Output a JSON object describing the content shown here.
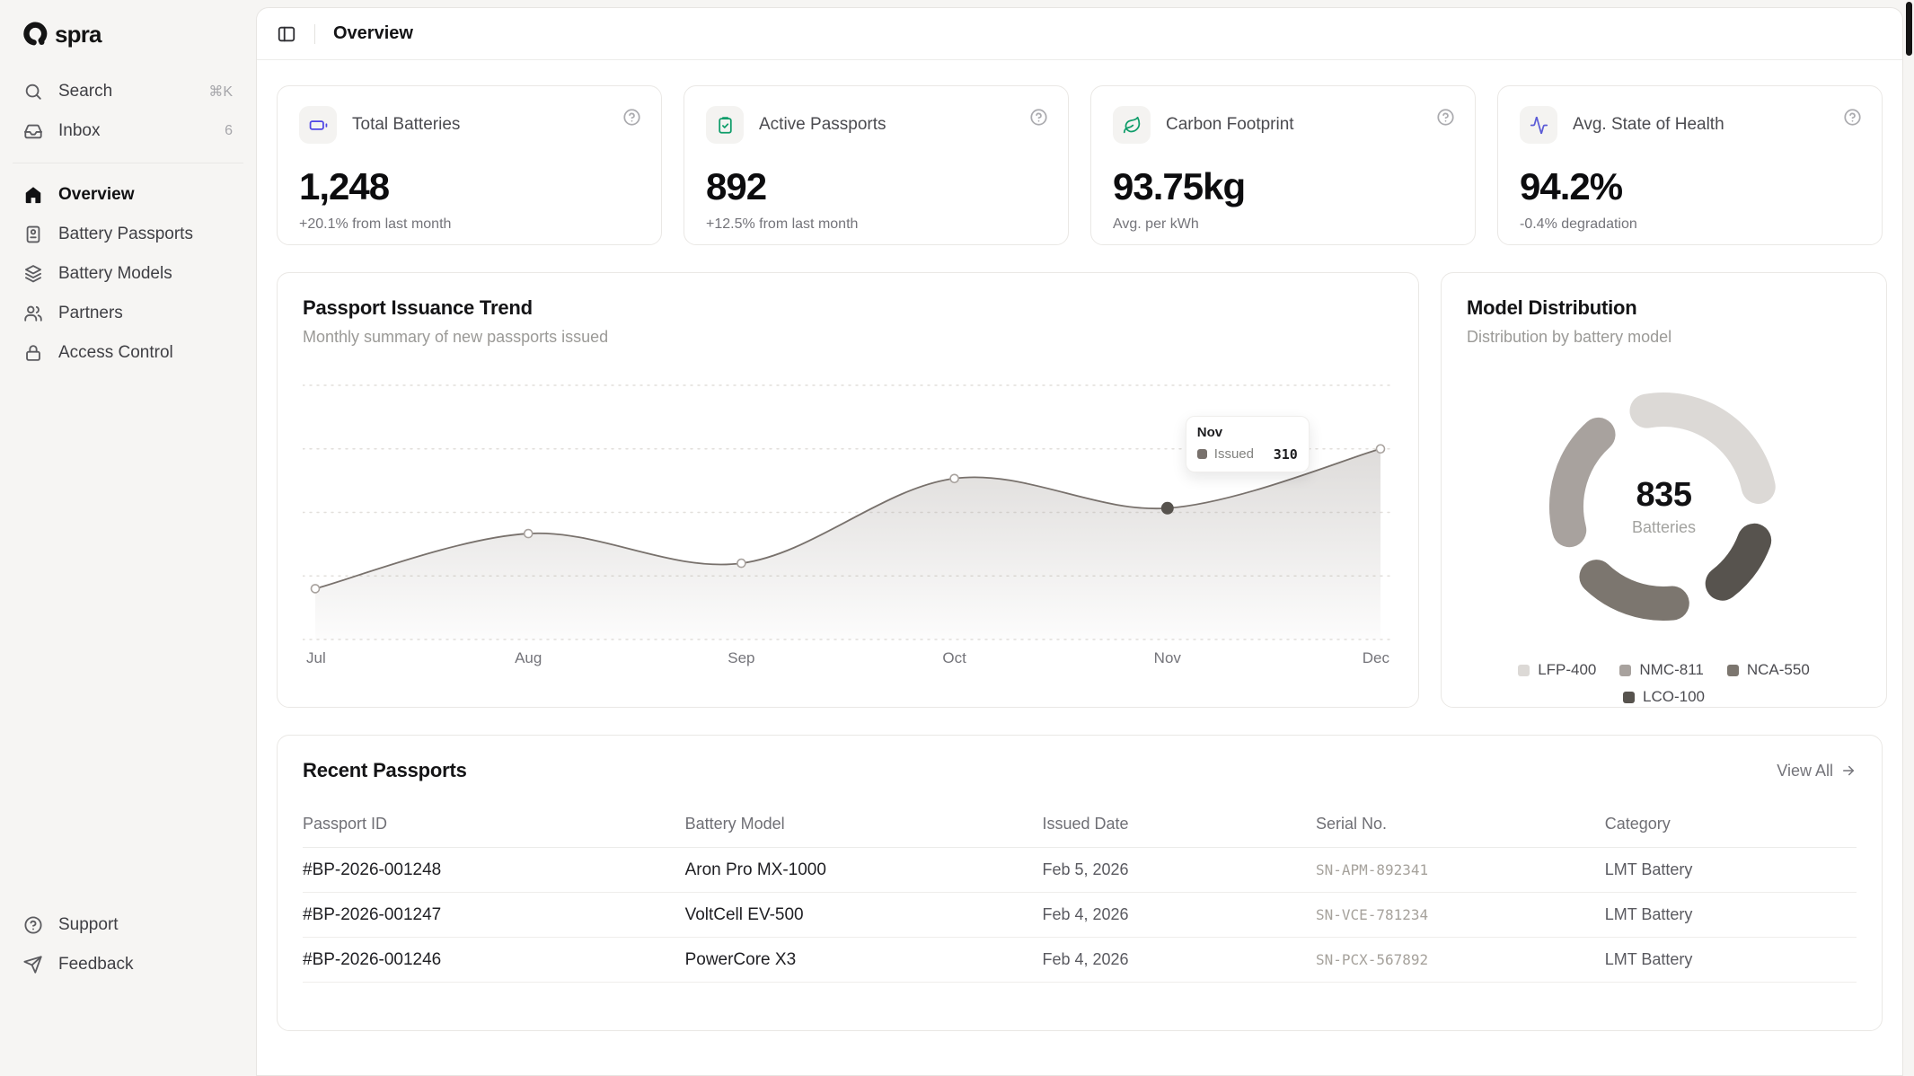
{
  "brand": {
    "name": "spra"
  },
  "sidebar": {
    "search": {
      "label": "Search",
      "shortcut": "⌘K"
    },
    "inbox": {
      "label": "Inbox",
      "badge": "6"
    },
    "nav": [
      {
        "label": "Overview",
        "icon": "home",
        "active": true
      },
      {
        "label": "Battery Passports",
        "icon": "passport",
        "active": false
      },
      {
        "label": "Battery Models",
        "icon": "layers",
        "active": false
      },
      {
        "label": "Partners",
        "icon": "users",
        "active": false
      },
      {
        "label": "Access Control",
        "icon": "lock",
        "active": false
      }
    ],
    "footer": [
      {
        "label": "Support",
        "icon": "help"
      },
      {
        "label": "Feedback",
        "icon": "send"
      }
    ]
  },
  "header": {
    "title": "Overview"
  },
  "stats": [
    {
      "title": "Total Batteries",
      "value": "1,248",
      "subtext": "+20.1% from last month",
      "icon": "battery",
      "icon_color": "#4f46e5"
    },
    {
      "title": "Active Passports",
      "value": "892",
      "subtext": "+12.5% from last month",
      "icon": "clipboard-check",
      "icon_color": "#0f9d6a"
    },
    {
      "title": "Carbon Footprint",
      "value": "93.75kg",
      "subtext": "Avg. per kWh",
      "icon": "leaf",
      "icon_color": "#0f9d6a"
    },
    {
      "title": "Avg. State of Health",
      "value": "94.2%",
      "subtext": "-0.4% degradation",
      "icon": "activity",
      "icon_color": "#5b5bd6"
    }
  ],
  "trend_card": {
    "title": "Passport Issuance Trend",
    "subtitle": "Monthly summary of new passports issued",
    "tooltip": {
      "month": "Nov",
      "series": "Issued",
      "value": "310"
    }
  },
  "distribution_card": {
    "title": "Model Distribution",
    "subtitle": "Distribution by battery model",
    "center_value": "835",
    "center_label": "Batteries"
  },
  "chart_data": [
    {
      "type": "area",
      "title": "Passport Issuance Trend",
      "x": [
        "Jul",
        "Aug",
        "Sep",
        "Oct",
        "Nov",
        "Dec"
      ],
      "series": [
        {
          "name": "Issued",
          "values": [
            120,
            250,
            180,
            380,
            310,
            450
          ]
        }
      ],
      "ylim": [
        0,
        600
      ],
      "gridlines": [
        0,
        150,
        300,
        450,
        600
      ],
      "grid_style": "dotted-horizontal",
      "highlight": {
        "x": "Nov",
        "value": 310
      },
      "line_color": "#78716c",
      "fill_color": "#a8a29e",
      "legend_position": "none"
    },
    {
      "type": "donut",
      "title": "Model Distribution",
      "categories": [
        "LFP-400",
        "NMC-811",
        "NCA-550",
        "LCO-100"
      ],
      "values": [
        290,
        220,
        185,
        140
      ],
      "total": 835,
      "colors": [
        "#dcd9d6",
        "#a8a29e",
        "#7c766f",
        "#57534e"
      ],
      "center_value": "835",
      "center_label": "Batteries",
      "legend_position": "bottom"
    }
  ],
  "table": {
    "title": "Recent Passports",
    "view_all": "View All",
    "columns": [
      "Passport ID",
      "Battery Model",
      "Issued Date",
      "Serial No.",
      "Category"
    ],
    "rows": [
      {
        "id": "#BP-2026-001248",
        "model": "Aron Pro MX-1000",
        "date": "Feb 5, 2026",
        "serial": "SN-APM-892341",
        "category": "LMT Battery"
      },
      {
        "id": "#BP-2026-001247",
        "model": "VoltCell EV-500",
        "date": "Feb 4, 2026",
        "serial": "SN-VCE-781234",
        "category": "LMT Battery"
      },
      {
        "id": "#BP-2026-001246",
        "model": "PowerCore X3",
        "date": "Feb 4, 2026",
        "serial": "SN-PCX-567892",
        "category": "LMT Battery"
      }
    ]
  }
}
